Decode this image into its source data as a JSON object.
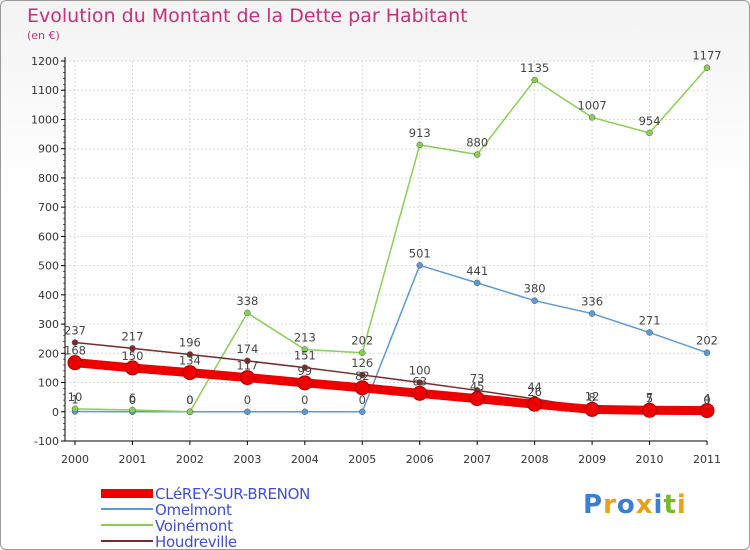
{
  "title": "Evolution du Montant de la Dette par Habitant",
  "subtitle": "(en €)",
  "brand": {
    "text": "Proxiti",
    "colors": [
      "#3a7fd5",
      "#e8a21a",
      "#3a7fd5",
      "#e8a21a",
      "#3a7fd5",
      "#79b829",
      "#e8a21a"
    ]
  },
  "chart_data": {
    "type": "line",
    "x": [
      "2000",
      "2001",
      "2002",
      "2003",
      "2004",
      "2005",
      "2006",
      "2007",
      "2008",
      "2009",
      "2010",
      "2011"
    ],
    "ylim": [
      -100,
      1200
    ],
    "yticks": [
      "-100",
      "0",
      "100",
      "200",
      "300",
      "400",
      "500",
      "600",
      "700",
      "800",
      "900",
      "1000",
      "1100",
      "1200"
    ],
    "grid": true,
    "legend_position": "bottom-left",
    "series": [
      {
        "name": "CLéREY-SUR-BRENON",
        "color": "#ee0000",
        "thick": true,
        "values": [
          168,
          150,
          134,
          117,
          99,
          82,
          63,
          45,
          26,
          8,
          5,
          4
        ],
        "labels": [
          "168",
          "150",
          "134",
          "117",
          "99",
          "82",
          "63",
          "45",
          "26",
          "8",
          "5",
          "4"
        ]
      },
      {
        "name": "Omelmont",
        "color": "#5b9ad6",
        "thick": false,
        "values": [
          1,
          0,
          0,
          0,
          0,
          0,
          501,
          441,
          380,
          336,
          271,
          202
        ],
        "labels": [
          "1",
          "0",
          "0",
          "0",
          "0",
          "0",
          "501",
          "441",
          "380",
          "336",
          "271",
          "202"
        ]
      },
      {
        "name": "Voinémont",
        "color": "#88d055",
        "thick": false,
        "values": [
          10,
          6,
          0,
          338,
          213,
          202,
          913,
          880,
          1135,
          1007,
          954,
          1177
        ],
        "labels": [
          "10",
          "6",
          "0",
          "338",
          "213",
          "202",
          "913",
          "880",
          "1135",
          "1007",
          "954",
          "1177"
        ]
      },
      {
        "name": "Houdreville",
        "color": "#7a2a2a",
        "thick": false,
        "values": [
          237,
          217,
          196,
          174,
          151,
          126,
          100,
          73,
          44,
          12,
          7,
          0
        ],
        "labels": [
          "237",
          "217",
          "196",
          "174",
          "151",
          "126",
          "100",
          "73",
          "44",
          "12",
          "7",
          "0"
        ]
      }
    ]
  }
}
